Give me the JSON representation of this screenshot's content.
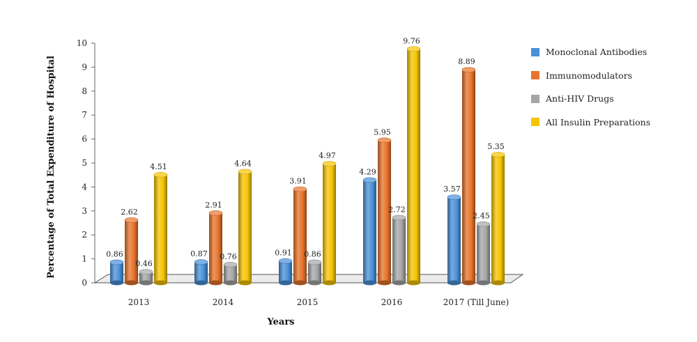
{
  "chart_data": {
    "type": "bar",
    "categories": [
      "2013",
      "2014",
      "2015",
      "2016",
      "2017 (Till June)"
    ],
    "series": [
      {
        "name": "Monoclonal Antibodies",
        "color": "#4a90d9",
        "values": [
          0.86,
          0.87,
          0.91,
          4.29,
          3.57
        ],
        "labels": [
          "0.86",
          "0.87",
          "0.91",
          "4.29",
          "3.57"
        ]
      },
      {
        "name": "Immunomodulators",
        "color": "#e8732a",
        "values": [
          2.62,
          2.91,
          3.91,
          5.95,
          8.89
        ],
        "labels": [
          "2.62",
          "2.91",
          "3.91",
          "5.95",
          "8.89"
        ]
      },
      {
        "name": "Anti-HIV Drugs",
        "color": "#a6a6a6",
        "values": [
          0.46,
          0.76,
          0.86,
          2.72,
          2.45
        ],
        "labels": [
          "0.46",
          "0.76",
          "0.86",
          "2.72",
          "2.45"
        ]
      },
      {
        "name": "All Insulin Preparations",
        "color": "#f5c400",
        "values": [
          4.51,
          4.64,
          4.97,
          9.76,
          5.35
        ],
        "labels": [
          "4.51",
          "4.64",
          "4.97",
          "9.76",
          "5.35"
        ]
      }
    ],
    "xlabel": "Years",
    "ylabel": "Percentage of Total Expenditure of Hospital",
    "ylim": [
      0,
      10
    ],
    "yticks": [
      "0",
      "1",
      "2",
      "3",
      "4",
      "5",
      "6",
      "7",
      "8",
      "9",
      "10"
    ],
    "legend_position": "right",
    "grid": false,
    "style": "3d-cylinder"
  }
}
